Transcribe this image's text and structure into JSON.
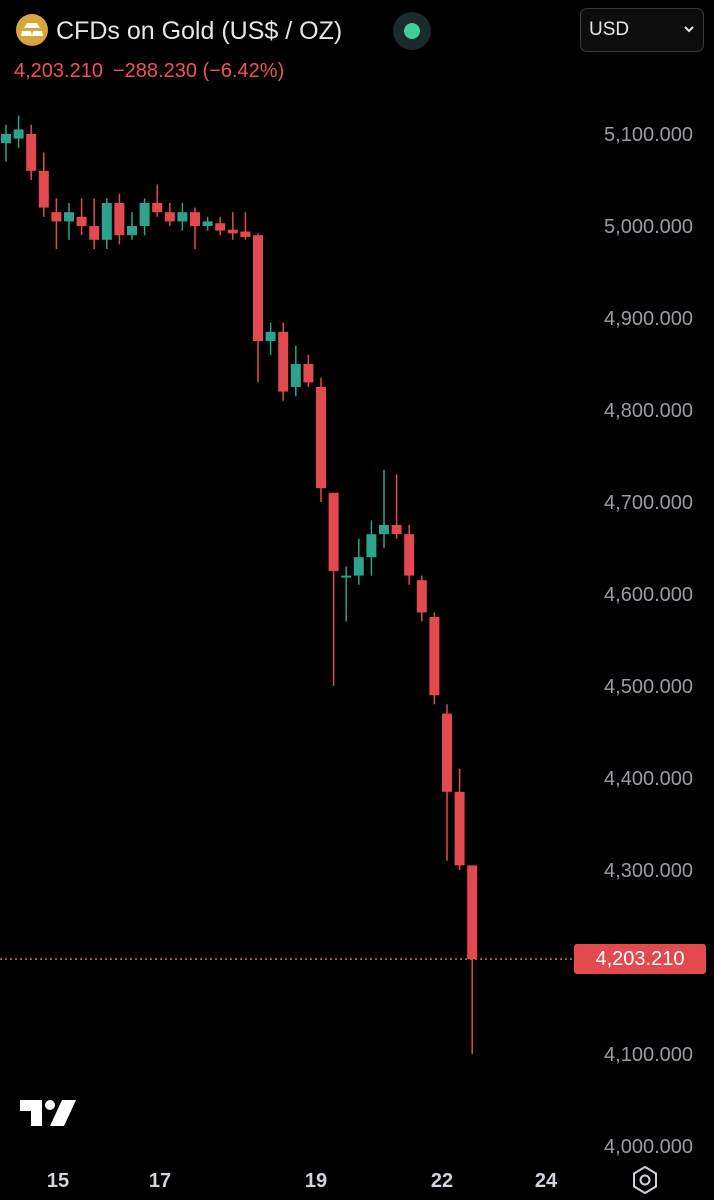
{
  "header": {
    "title": "CFDs on Gold (US$ / OZ)",
    "price": "4,203.210",
    "change": "−288.230 (−6.42%)",
    "currency": "USD",
    "status_color": "#3ecf9a"
  },
  "icons": {
    "logo": "gold-bars-icon",
    "status": "market-status-dot-icon",
    "dropdown": "chevron-down-icon",
    "brand": "tradingview-logo-icon",
    "settings": "hexagon-settings-icon"
  },
  "colors": {
    "up": "#2ea28a",
    "down": "#e34a4f",
    "last_price_line": "#e08a3c"
  },
  "chart_data": {
    "type": "candlestick",
    "y_axis": {
      "ticks": [
        5100,
        5000,
        4900,
        4800,
        4700,
        4600,
        4500,
        4400,
        4300,
        4100,
        4000
      ],
      "tick_labels": [
        "5,100.000",
        "5,000.000",
        "4,900.000",
        "4,800.000",
        "4,700.000",
        "4,600.000",
        "4,500.000",
        "4,400.000",
        "4,300.000",
        "4,100.000",
        "4,000.000"
      ],
      "ylim": [
        3990,
        5140
      ],
      "position": "right"
    },
    "x_axis": {
      "labels": [
        "15",
        "17",
        "19",
        "22",
        "24"
      ]
    },
    "last_price": 4203.21,
    "last_price_label": "4,203.210",
    "candles": [
      {
        "o": 5090,
        "h": 5110,
        "l": 5070,
        "c": 5100
      },
      {
        "o": 5095,
        "h": 5120,
        "l": 5085,
        "c": 5105
      },
      {
        "o": 5100,
        "h": 5110,
        "l": 5050,
        "c": 5060
      },
      {
        "o": 5060,
        "h": 5080,
        "l": 5010,
        "c": 5020
      },
      {
        "o": 5015,
        "h": 5030,
        "l": 4975,
        "c": 5005
      },
      {
        "o": 5005,
        "h": 5025,
        "l": 4985,
        "c": 5015
      },
      {
        "o": 5010,
        "h": 5030,
        "l": 4990,
        "c": 5000
      },
      {
        "o": 5000,
        "h": 5030,
        "l": 4975,
        "c": 4985
      },
      {
        "o": 4985,
        "h": 5030,
        "l": 4975,
        "c": 5025
      },
      {
        "o": 5025,
        "h": 5035,
        "l": 4980,
        "c": 4990
      },
      {
        "o": 4990,
        "h": 5015,
        "l": 4985,
        "c": 5000
      },
      {
        "o": 5000,
        "h": 5030,
        "l": 4990,
        "c": 5025
      },
      {
        "o": 5025,
        "h": 5045,
        "l": 5010,
        "c": 5015
      },
      {
        "o": 5015,
        "h": 5025,
        "l": 5000,
        "c": 5005
      },
      {
        "o": 5005,
        "h": 5025,
        "l": 4995,
        "c": 5015
      },
      {
        "o": 5015,
        "h": 5020,
        "l": 4975,
        "c": 5000
      },
      {
        "o": 5000,
        "h": 5010,
        "l": 4995,
        "c": 5005
      },
      {
        "o": 5003,
        "h": 5010,
        "l": 4990,
        "c": 4995
      },
      {
        "o": 4996,
        "h": 5015,
        "l": 4985,
        "c": 4992
      },
      {
        "o": 4994,
        "h": 5015,
        "l": 4985,
        "c": 4988
      },
      {
        "o": 4990,
        "h": 4992,
        "l": 4830,
        "c": 4875
      },
      {
        "o": 4875,
        "h": 4895,
        "l": 4860,
        "c": 4885
      },
      {
        "o": 4885,
        "h": 4895,
        "l": 4810,
        "c": 4820
      },
      {
        "o": 4825,
        "h": 4870,
        "l": 4815,
        "c": 4850
      },
      {
        "o": 4850,
        "h": 4860,
        "l": 4825,
        "c": 4830
      },
      {
        "o": 4825,
        "h": 4835,
        "l": 4700,
        "c": 4715
      },
      {
        "o": 4710,
        "h": 4710,
        "l": 4500,
        "c": 4625
      },
      {
        "o": 4620,
        "h": 4630,
        "l": 4570,
        "c": 4620
      },
      {
        "o": 4620,
        "h": 4660,
        "l": 4610,
        "c": 4640
      },
      {
        "o": 4640,
        "h": 4680,
        "l": 4620,
        "c": 4665
      },
      {
        "o": 4665,
        "h": 4735,
        "l": 4650,
        "c": 4675
      },
      {
        "o": 4675,
        "h": 4730,
        "l": 4660,
        "c": 4665
      },
      {
        "o": 4665,
        "h": 4675,
        "l": 4610,
        "c": 4620
      },
      {
        "o": 4615,
        "h": 4620,
        "l": 4570,
        "c": 4580
      },
      {
        "o": 4575,
        "h": 4580,
        "l": 4480,
        "c": 4490
      },
      {
        "o": 4470,
        "h": 4480,
        "l": 4310,
        "c": 4385
      },
      {
        "o": 4385,
        "h": 4410,
        "l": 4300,
        "c": 4305
      },
      {
        "o": 4305,
        "h": 4305,
        "l": 4100,
        "c": 4203.21
      }
    ]
  }
}
